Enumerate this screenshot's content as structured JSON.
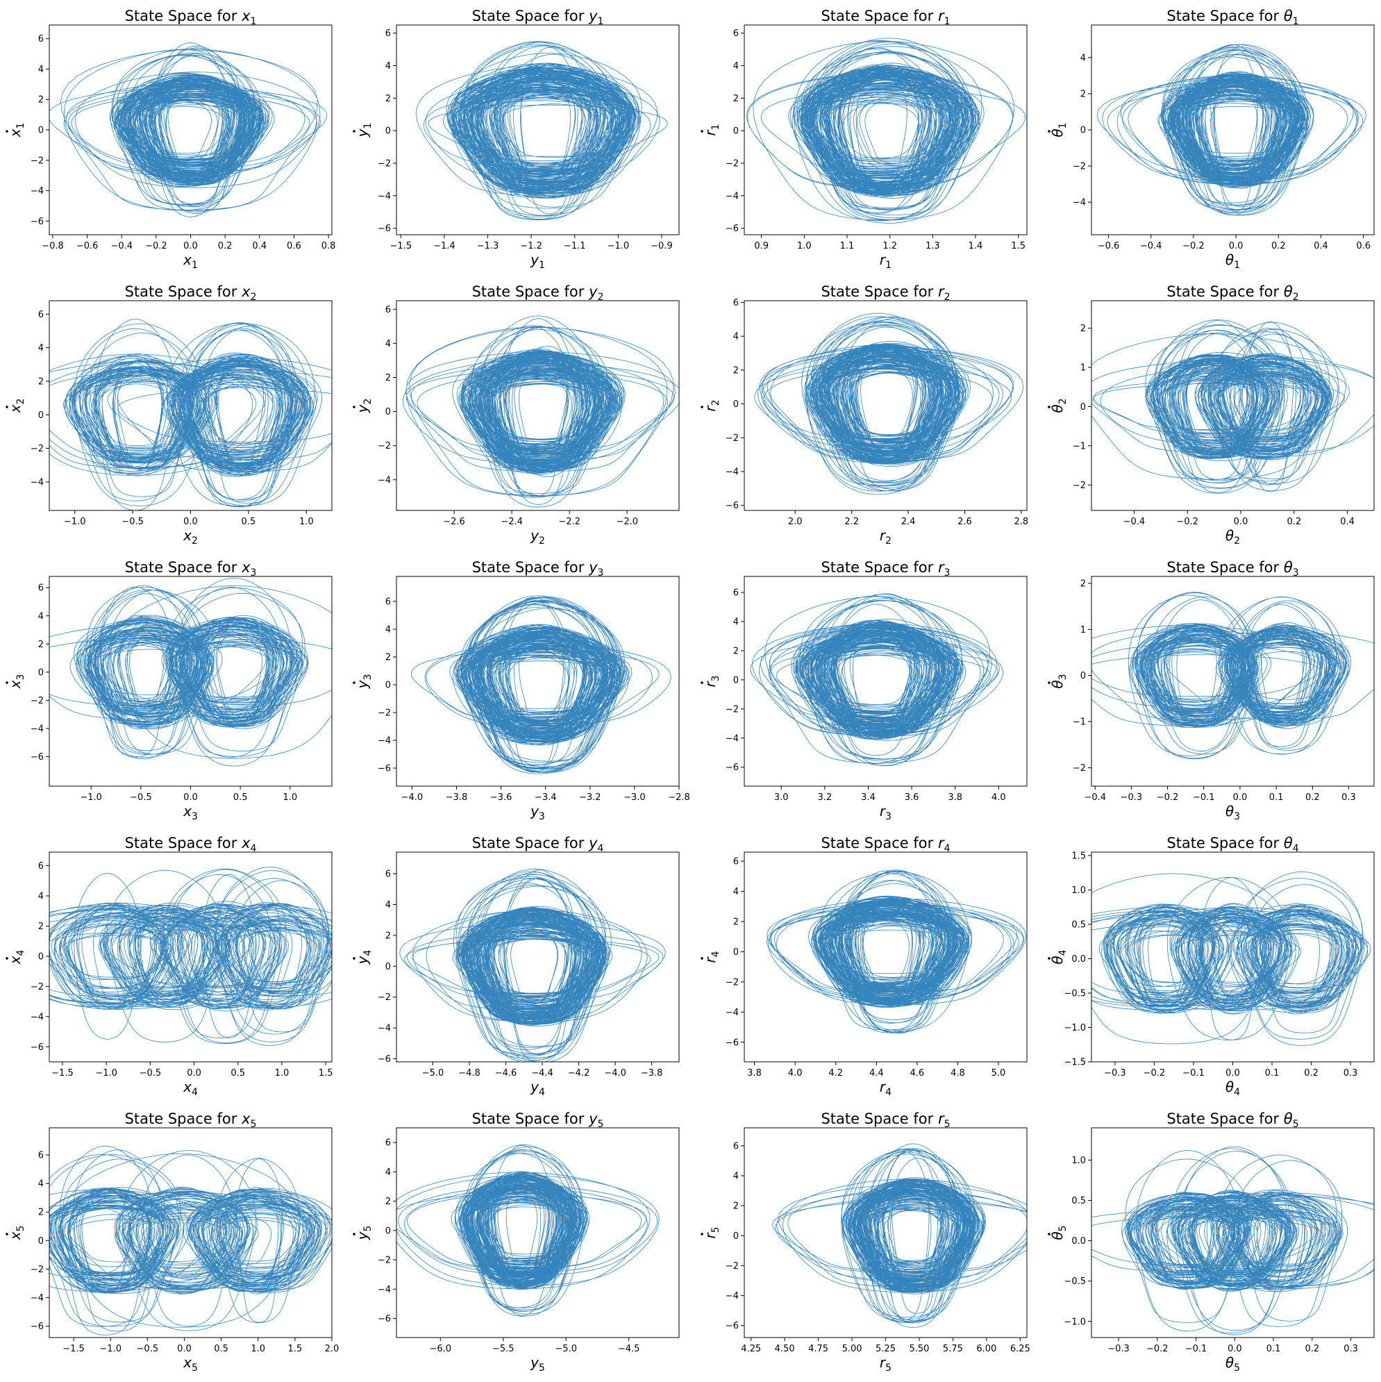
{
  "chart_data": [
    {
      "type": "line",
      "title_prefix": "State Space for ",
      "var": "x",
      "var_kind": "latin",
      "sub": "1",
      "xlabel_var": "x",
      "ylabel_var": "x",
      "ylabel_dot": true,
      "xlim": [
        -0.82,
        0.82
      ],
      "ylim": [
        -6.9,
        6.9
      ],
      "xticks": [
        -0.8,
        -0.6,
        -0.4,
        -0.2,
        0.0,
        0.2,
        0.4,
        0.6,
        0.8
      ],
      "xtick_labels": [
        "−0.8",
        "−0.6",
        "−0.4",
        "−0.2",
        "0.0",
        "0.2",
        "0.4",
        "0.6",
        "0.8"
      ],
      "yticks": [
        -6,
        -4,
        -2,
        0,
        2,
        4,
        6
      ],
      "ytick_labels": [
        "−6",
        "−4",
        "−2",
        "0",
        "2",
        "4",
        "6"
      ],
      "x_center": 0.0,
      "x_amp": 0.35,
      "x_max": 0.75,
      "y_amp": 3.3,
      "y_max": 6.0,
      "modes": [
        0
      ]
    },
    {
      "type": "line",
      "title_prefix": "State Space for ",
      "var": "y",
      "var_kind": "latin",
      "sub": "1",
      "xlabel_var": "y",
      "ylabel_var": "y",
      "ylabel_dot": true,
      "xlim": [
        -1.51,
        -0.86
      ],
      "ylim": [
        -6.4,
        6.5
      ],
      "xticks": [
        -1.5,
        -1.4,
        -1.3,
        -1.2,
        -1.1,
        -1.0,
        -0.9
      ],
      "xtick_labels": [
        "−1.5",
        "−1.4",
        "−1.3",
        "−1.2",
        "−1.1",
        "−1.0",
        "−0.9"
      ],
      "yticks": [
        -6,
        -4,
        -2,
        0,
        2,
        4,
        6
      ],
      "ytick_labels": [
        "−6",
        "−4",
        "−2",
        "0",
        "2",
        "4",
        "6"
      ],
      "x_center": -1.17,
      "x_amp": 0.17,
      "x_max": 0.3,
      "y_amp": 3.6,
      "y_max": 6.0,
      "modes": [
        0
      ]
    },
    {
      "type": "line",
      "title_prefix": "State Space for ",
      "var": "r",
      "var_kind": "latin",
      "sub": "1",
      "xlabel_var": "r",
      "ylabel_var": "r",
      "ylabel_dot": true,
      "xlim": [
        0.86,
        1.52
      ],
      "ylim": [
        -6.4,
        6.5
      ],
      "xticks": [
        0.9,
        1.0,
        1.1,
        1.2,
        1.3,
        1.4,
        1.5
      ],
      "xtick_labels": [
        "0.9",
        "1.0",
        "1.1",
        "1.2",
        "1.3",
        "1.4",
        "1.5"
      ],
      "yticks": [
        -6,
        -4,
        -2,
        0,
        2,
        4,
        6
      ],
      "ytick_labels": [
        "−6",
        "−4",
        "−2",
        "0",
        "2",
        "4",
        "6"
      ],
      "x_center": 1.19,
      "x_amp": 0.17,
      "x_max": 0.3,
      "y_amp": 3.6,
      "y_max": 6.0,
      "modes": [
        0
      ]
    },
    {
      "type": "line",
      "title_prefix": "State Space for ",
      "var": "θ",
      "var_kind": "greek",
      "sub": "1",
      "xlabel_var": "θ",
      "ylabel_var": "θ",
      "ylabel_dot": true,
      "xlim": [
        -0.68,
        0.65
      ],
      "ylim": [
        -5.8,
        5.8
      ],
      "xticks": [
        -0.6,
        -0.4,
        -0.2,
        0.0,
        0.2,
        0.4,
        0.6
      ],
      "xtick_labels": [
        "−0.6",
        "−0.4",
        "−0.2",
        "0.0",
        "0.2",
        "0.4",
        "0.6"
      ],
      "yticks": [
        -4,
        -2,
        0,
        2,
        4
      ],
      "ytick_labels": [
        "−4",
        "−2",
        "0",
        "2",
        "4"
      ],
      "x_center": 0.0,
      "x_amp": 0.27,
      "x_max": 0.6,
      "y_amp": 2.8,
      "y_max": 5.2,
      "modes": [
        0
      ]
    },
    {
      "type": "line",
      "title_prefix": "State Space for ",
      "var": "x",
      "var_kind": "latin",
      "sub": "2",
      "xlabel_var": "x",
      "ylabel_var": "x",
      "ylabel_dot": true,
      "xlim": [
        -1.22,
        1.22
      ],
      "ylim": [
        -5.7,
        6.8
      ],
      "xticks": [
        -1.0,
        -0.5,
        0.0,
        0.5,
        1.0
      ],
      "xtick_labels": [
        "−1.0",
        "−0.5",
        "0.0",
        "0.5",
        "1.0"
      ],
      "yticks": [
        -4,
        -2,
        0,
        2,
        4,
        6
      ],
      "ytick_labels": [
        "−4",
        "−2",
        "0",
        "2",
        "4",
        "6"
      ],
      "x_center": 0.0,
      "x_amp": 0.5,
      "x_max": 1.1,
      "y_amp": 3.2,
      "y_max": 6.2,
      "modes": [
        -0.45,
        0.45
      ]
    },
    {
      "type": "line",
      "title_prefix": "State Space for ",
      "var": "y",
      "var_kind": "latin",
      "sub": "2",
      "xlabel_var": "y",
      "ylabel_var": "y",
      "ylabel_dot": true,
      "xlim": [
        -2.8,
        -1.82
      ],
      "ylim": [
        -5.8,
        6.5
      ],
      "xticks": [
        -2.6,
        -2.4,
        -2.2,
        -2.0
      ],
      "xtick_labels": [
        "−2.6",
        "−2.4",
        "−2.2",
        "−2.0"
      ],
      "yticks": [
        -4,
        -2,
        0,
        2,
        4,
        6
      ],
      "ytick_labels": [
        "−4",
        "−2",
        "0",
        "2",
        "4",
        "6"
      ],
      "x_center": -2.3,
      "x_amp": 0.22,
      "x_max": 0.45,
      "y_amp": 3.3,
      "y_max": 6.0,
      "modes": [
        0
      ]
    },
    {
      "type": "line",
      "title_prefix": "State Space for ",
      "var": "r",
      "var_kind": "latin",
      "sub": "2",
      "xlabel_var": "r",
      "ylabel_var": "r",
      "ylabel_dot": true,
      "xlim": [
        1.82,
        2.82
      ],
      "ylim": [
        -6.3,
        6.1
      ],
      "xticks": [
        2.0,
        2.2,
        2.4,
        2.6,
        2.8
      ],
      "xtick_labels": [
        "2.0",
        "2.2",
        "2.4",
        "2.6",
        "2.8"
      ],
      "yticks": [
        -6,
        -4,
        -2,
        0,
        2,
        4,
        6
      ],
      "ytick_labels": [
        "−6",
        "−4",
        "−2",
        "0",
        "2",
        "4",
        "6"
      ],
      "x_center": 2.32,
      "x_amp": 0.22,
      "x_max": 0.45,
      "y_amp": 3.2,
      "y_max": 5.6,
      "modes": [
        0
      ]
    },
    {
      "type": "line",
      "title_prefix": "State Space for ",
      "var": "θ",
      "var_kind": "greek",
      "sub": "2",
      "xlabel_var": "θ",
      "ylabel_var": "θ",
      "ylabel_dot": true,
      "xlim": [
        -0.56,
        0.5
      ],
      "ylim": [
        -2.65,
        2.7
      ],
      "xticks": [
        -0.4,
        -0.2,
        0.0,
        0.2,
        0.4
      ],
      "xtick_labels": [
        "−0.4",
        "−0.2",
        "0.0",
        "0.2",
        "0.4"
      ],
      "yticks": [
        -2,
        -1,
        0,
        1,
        2
      ],
      "ytick_labels": [
        "−2",
        "−1",
        "0",
        "1",
        "2"
      ],
      "x_center": 0.0,
      "x_amp": 0.2,
      "x_max": 0.48,
      "y_amp": 1.2,
      "y_max": 2.35,
      "modes": [
        -0.1,
        0.1
      ]
    },
    {
      "type": "line",
      "title_prefix": "State Space for ",
      "var": "x",
      "var_kind": "latin",
      "sub": "3",
      "xlabel_var": "x",
      "ylabel_var": "x",
      "ylabel_dot": true,
      "xlim": [
        -1.42,
        1.42
      ],
      "ylim": [
        -8.1,
        6.8
      ],
      "xticks": [
        -1.0,
        -0.5,
        0.0,
        0.5,
        1.0
      ],
      "xtick_labels": [
        "−1.0",
        "−0.5",
        "0.0",
        "0.5",
        "1.0"
      ],
      "yticks": [
        -6,
        -4,
        -2,
        0,
        2,
        4,
        6
      ],
      "ytick_labels": [
        "−6",
        "−4",
        "−2",
        "0",
        "2",
        "4",
        "6"
      ],
      "x_center": 0.0,
      "x_amp": 0.55,
      "x_max": 1.3,
      "y_amp": 3.5,
      "y_max": 7.0,
      "modes": [
        -0.45,
        0.45
      ]
    },
    {
      "type": "line",
      "title_prefix": "State Space for ",
      "var": "y",
      "var_kind": "latin",
      "sub": "3",
      "xlabel_var": "y",
      "ylabel_var": "y",
      "ylabel_dot": true,
      "xlim": [
        -4.07,
        -2.8
      ],
      "ylim": [
        -7.3,
        7.8
      ],
      "xticks": [
        -4.0,
        -3.8,
        -3.6,
        -3.4,
        -3.2,
        -3.0,
        -2.8
      ],
      "xtick_labels": [
        "−4.0",
        "−3.8",
        "−3.6",
        "−3.4",
        "−3.2",
        "−3.0",
        "−2.8"
      ],
      "yticks": [
        -6,
        -4,
        -2,
        0,
        2,
        4,
        6
      ],
      "ytick_labels": [
        "−6",
        "−4",
        "−2",
        "0",
        "2",
        "4",
        "6"
      ],
      "x_center": -3.42,
      "x_amp": 0.3,
      "x_max": 0.55,
      "y_amp": 3.8,
      "y_max": 7.0,
      "modes": [
        0
      ]
    },
    {
      "type": "line",
      "title_prefix": "State Space for ",
      "var": "r",
      "var_kind": "latin",
      "sub": "3",
      "xlabel_var": "r",
      "ylabel_var": "r",
      "ylabel_dot": true,
      "xlim": [
        2.83,
        4.13
      ],
      "ylim": [
        -7.3,
        7.1
      ],
      "xticks": [
        3.0,
        3.2,
        3.4,
        3.6,
        3.8,
        4.0
      ],
      "xtick_labels": [
        "3.0",
        "3.2",
        "3.4",
        "3.6",
        "3.8",
        "4.0"
      ],
      "yticks": [
        -6,
        -4,
        -2,
        0,
        2,
        4,
        6
      ],
      "ytick_labels": [
        "−6",
        "−4",
        "−2",
        "0",
        "2",
        "4",
        "6"
      ],
      "x_center": 3.45,
      "x_amp": 0.3,
      "x_max": 0.55,
      "y_amp": 3.6,
      "y_max": 6.5,
      "modes": [
        0
      ]
    },
    {
      "type": "line",
      "title_prefix": "State Space for ",
      "var": "θ",
      "var_kind": "greek",
      "sub": "3",
      "xlabel_var": "θ",
      "ylabel_var": "θ",
      "ylabel_dot": true,
      "xlim": [
        -0.41,
        0.37
      ],
      "ylim": [
        -2.4,
        2.15
      ],
      "xticks": [
        -0.4,
        -0.3,
        -0.2,
        -0.1,
        0.0,
        0.1,
        0.2,
        0.3
      ],
      "xtick_labels": [
        "−0.4",
        "−0.3",
        "−0.2",
        "−0.1",
        "0.0",
        "0.1",
        "0.2",
        "0.3"
      ],
      "yticks": [
        -2,
        -1,
        0,
        1,
        2
      ],
      "ytick_labels": [
        "−2",
        "−1",
        "0",
        "1",
        "2"
      ],
      "x_center": 0.0,
      "x_amp": 0.14,
      "x_max": 0.34,
      "y_amp": 1.0,
      "y_max": 1.95,
      "modes": [
        -0.12,
        0.12
      ]
    },
    {
      "type": "line",
      "title_prefix": "State Space for ",
      "var": "x",
      "var_kind": "latin",
      "sub": "4",
      "xlabel_var": "x",
      "ylabel_var": "x",
      "ylabel_dot": true,
      "xlim": [
        -1.65,
        1.57
      ],
      "ylim": [
        -7.0,
        6.9
      ],
      "xticks": [
        -1.5,
        -1.0,
        -0.5,
        0.0,
        0.5,
        1.0,
        1.5
      ],
      "xtick_labels": [
        "−1.5",
        "−1.0",
        "−0.5",
        "0.0",
        "0.5",
        "1.0",
        "1.5"
      ],
      "yticks": [
        -6,
        -4,
        -2,
        0,
        2,
        4,
        6
      ],
      "ytick_labels": [
        "−6",
        "−4",
        "−2",
        "0",
        "2",
        "4",
        "6"
      ],
      "x_center": 0.0,
      "x_amp": 0.6,
      "x_max": 1.4,
      "y_amp": 3.2,
      "y_max": 6.3,
      "modes": [
        -0.9,
        -0.3,
        0.3,
        0.9
      ]
    },
    {
      "type": "line",
      "title_prefix": "State Space for ",
      "var": "y",
      "var_kind": "latin",
      "sub": "4",
      "xlabel_var": "y",
      "ylabel_var": "y",
      "ylabel_dot": true,
      "xlim": [
        -5.2,
        -3.65
      ],
      "ylim": [
        -6.2,
        7.4
      ],
      "xticks": [
        -5.0,
        -4.8,
        -4.6,
        -4.4,
        -4.2,
        -4.0,
        -3.8
      ],
      "xtick_labels": [
        "−5.0",
        "−4.8",
        "−4.6",
        "−4.4",
        "−4.2",
        "−4.0",
        "−3.8"
      ],
      "yticks": [
        -6,
        -4,
        -2,
        0,
        2,
        4,
        6
      ],
      "ytick_labels": [
        "−6",
        "−4",
        "−2",
        "0",
        "2",
        "4",
        "6"
      ],
      "x_center": -4.45,
      "x_amp": 0.32,
      "x_max": 0.7,
      "y_amp": 3.4,
      "y_max": 6.7,
      "modes": [
        0
      ]
    },
    {
      "type": "line",
      "title_prefix": "State Space for ",
      "var": "r",
      "var_kind": "latin",
      "sub": "4",
      "xlabel_var": "r",
      "ylabel_var": "r",
      "ylabel_dot": true,
      "xlim": [
        3.75,
        5.14
      ],
      "ylim": [
        -7.3,
        6.6
      ],
      "xticks": [
        3.8,
        4.0,
        4.2,
        4.4,
        4.6,
        4.8,
        5.0
      ],
      "xtick_labels": [
        "3.8",
        "4.0",
        "4.2",
        "4.4",
        "4.6",
        "4.8",
        "5.0"
      ],
      "yticks": [
        -6,
        -4,
        -2,
        0,
        2,
        4,
        6
      ],
      "ytick_labels": [
        "−6",
        "−4",
        "−2",
        "0",
        "2",
        "4",
        "6"
      ],
      "x_center": 4.47,
      "x_amp": 0.3,
      "x_max": 0.62,
      "y_amp": 3.2,
      "y_max": 5.8,
      "modes": [
        0
      ]
    },
    {
      "type": "line",
      "title_prefix": "State Space for ",
      "var": "θ",
      "var_kind": "greek",
      "sub": "4",
      "xlabel_var": "θ",
      "ylabel_var": "θ",
      "ylabel_dot": true,
      "xlim": [
        -0.36,
        0.36
      ],
      "ylim": [
        -1.5,
        1.55
      ],
      "xticks": [
        -0.3,
        -0.2,
        -0.1,
        0.0,
        0.1,
        0.2,
        0.3
      ],
      "xtick_labels": [
        "−0.3",
        "−0.2",
        "−0.1",
        "0.0",
        "0.1",
        "0.2",
        "0.3"
      ],
      "yticks": [
        -1.5,
        -1.0,
        -0.5,
        0.0,
        0.5,
        1.0,
        1.5
      ],
      "ytick_labels": [
        "−1.5",
        "−1.0",
        "−0.5",
        "0.0",
        "0.5",
        "1.0",
        "1.5"
      ],
      "x_center": 0.0,
      "x_amp": 0.13,
      "x_max": 0.31,
      "y_amp": 0.7,
      "y_max": 1.35,
      "modes": [
        -0.17,
        0.0,
        0.17
      ]
    },
    {
      "type": "line",
      "title_prefix": "State Space for ",
      "var": "x",
      "var_kind": "latin",
      "sub": "5",
      "xlabel_var": "x",
      "ylabel_var": "x",
      "ylabel_dot": true,
      "xlim": [
        -1.83,
        2.0
      ],
      "ylim": [
        -6.8,
        7.9
      ],
      "xticks": [
        -1.5,
        -1.0,
        -0.5,
        0.0,
        0.5,
        1.0,
        1.5,
        2.0
      ],
      "xtick_labels": [
        "−1.5",
        "−1.0",
        "−0.5",
        "0.0",
        "0.5",
        "1.0",
        "1.5",
        "2.0"
      ],
      "yticks": [
        -6,
        -4,
        -2,
        0,
        2,
        4,
        6
      ],
      "ytick_labels": [
        "−6",
        "−4",
        "−2",
        "0",
        "2",
        "4",
        "6"
      ],
      "x_center": 0.0,
      "x_amp": 0.75,
      "x_max": 1.7,
      "y_amp": 3.3,
      "y_max": 7.2,
      "modes": [
        -1.0,
        0.0,
        1.0
      ]
    },
    {
      "type": "line",
      "title_prefix": "State Space for ",
      "var": "y",
      "var_kind": "latin",
      "sub": "5",
      "xlabel_var": "y",
      "ylabel_var": "y",
      "ylabel_dot": true,
      "xlim": [
        -6.35,
        -4.1
      ],
      "ylim": [
        -7.3,
        7.0
      ],
      "xticks": [
        -6.0,
        -5.5,
        -5.0,
        -4.5
      ],
      "xtick_labels": [
        "−6.0",
        "−5.5",
        "−5.0",
        "−4.5"
      ],
      "yticks": [
        -6,
        -4,
        -2,
        0,
        2,
        4,
        6
      ],
      "ytick_labels": [
        "−6",
        "−4",
        "−2",
        "0",
        "2",
        "4",
        "6"
      ],
      "x_center": -5.35,
      "x_amp": 0.4,
      "x_max": 1.05,
      "y_amp": 3.5,
      "y_max": 6.3,
      "modes": [
        0
      ]
    },
    {
      "type": "line",
      "title_prefix": "State Space for ",
      "var": "r",
      "var_kind": "latin",
      "sub": "5",
      "xlabel_var": "r",
      "ylabel_var": "r",
      "ylabel_dot": true,
      "xlim": [
        4.2,
        6.3
      ],
      "ylim": [
        -6.8,
        7.2
      ],
      "xticks": [
        4.25,
        4.5,
        4.75,
        5.0,
        5.25,
        5.5,
        5.75,
        6.0,
        6.25
      ],
      "xtick_labels": [
        "4.25",
        "4.50",
        "4.75",
        "5.00",
        "5.25",
        "5.50",
        "5.75",
        "6.00",
        "6.25"
      ],
      "yticks": [
        -6,
        -4,
        -2,
        0,
        2,
        4,
        6
      ],
      "ytick_labels": [
        "−6",
        "−4",
        "−2",
        "0",
        "2",
        "4",
        "6"
      ],
      "x_center": 5.45,
      "x_amp": 0.4,
      "x_max": 1.0,
      "y_amp": 3.4,
      "y_max": 6.5,
      "modes": [
        0
      ]
    },
    {
      "type": "line",
      "title_prefix": "State Space for ",
      "var": "θ",
      "var_kind": "greek",
      "sub": "5",
      "xlabel_var": "θ",
      "ylabel_var": "θ",
      "ylabel_dot": true,
      "xlim": [
        -0.37,
        0.36
      ],
      "ylim": [
        -1.2,
        1.4
      ],
      "xticks": [
        -0.3,
        -0.2,
        -0.1,
        0.0,
        0.1,
        0.2,
        0.3
      ],
      "xtick_labels": [
        "−0.3",
        "−0.2",
        "−0.1",
        "0.0",
        "0.1",
        "0.2",
        "0.3"
      ],
      "yticks": [
        -1.0,
        -0.5,
        0.0,
        0.5,
        1.0
      ],
      "ytick_labels": [
        "−1.0",
        "−0.5",
        "0.0",
        "0.5",
        "1.0"
      ],
      "x_center": 0.0,
      "x_amp": 0.13,
      "x_max": 0.33,
      "y_amp": 0.55,
      "y_max": 1.25,
      "modes": [
        -0.12,
        0.0,
        0.12
      ]
    }
  ],
  "style": {
    "line_color": "#1f77b4",
    "axes_color": "#000000"
  }
}
